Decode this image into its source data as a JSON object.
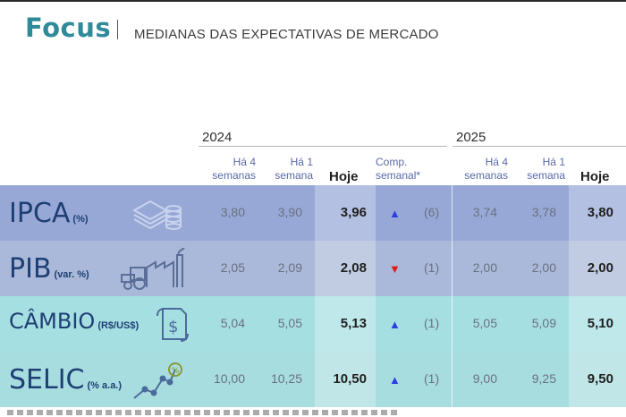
{
  "brand": "Focus",
  "subtitle": "MEDIANAS DAS EXPECTATIVAS DE MERCADO",
  "years": [
    "2024",
    "2025"
  ],
  "headers": {
    "ha4": [
      "Há 4",
      "semanas"
    ],
    "ha1": [
      "Há 1",
      "semana"
    ],
    "hoje": "Hoje",
    "comp": [
      "Comp.",
      "semanal*"
    ]
  },
  "colors": {
    "brand": "#2f8b9a",
    "up": "#2d3fe0",
    "down": "#e01b1b",
    "row_ipca": "#97a8d6",
    "row_pib": "#aab9d9",
    "row_cambio": "#a6dfe2",
    "row_selic": "#a8dde0"
  },
  "rows": [
    {
      "name": "IPCA",
      "unit": "(%)",
      "icon": "money-stack-icon",
      "y2024": {
        "ha4": "3,80",
        "ha1": "3,90",
        "hoje": "3,96"
      },
      "trend": "up",
      "arrow": "▲",
      "weeks": "(6)",
      "y2025": {
        "ha4": "3,74",
        "ha1": "3,78",
        "hoje": "3,80"
      }
    },
    {
      "name": "PIB",
      "unit": "(var. %)",
      "icon": "tractor-factory-icon",
      "y2024": {
        "ha4": "2,05",
        "ha1": "2,09",
        "hoje": "2,08"
      },
      "trend": "down",
      "arrow": "▼",
      "weeks": "(1)",
      "y2025": {
        "ha4": "2,00",
        "ha1": "2,00",
        "hoje": "2,00"
      }
    },
    {
      "name": "CÂMBIO",
      "unit": "(R$/US$)",
      "icon": "currency-exchange-icon",
      "y2024": {
        "ha4": "5,04",
        "ha1": "5,05",
        "hoje": "5,13"
      },
      "trend": "up",
      "arrow": "▲",
      "weeks": "(1)",
      "y2025": {
        "ha4": "5,05",
        "ha1": "5,09",
        "hoje": "5,10"
      }
    },
    {
      "name": "SELIC",
      "unit": "(% a.a.)",
      "icon": "rising-chart-percent-icon",
      "y2024": {
        "ha4": "10,00",
        "ha1": "10,25",
        "hoje": "10,50"
      },
      "trend": "up",
      "arrow": "▲",
      "weeks": "(1)",
      "y2025": {
        "ha4": "9,00",
        "ha1": "9,25",
        "hoje": "9,50"
      }
    }
  ]
}
